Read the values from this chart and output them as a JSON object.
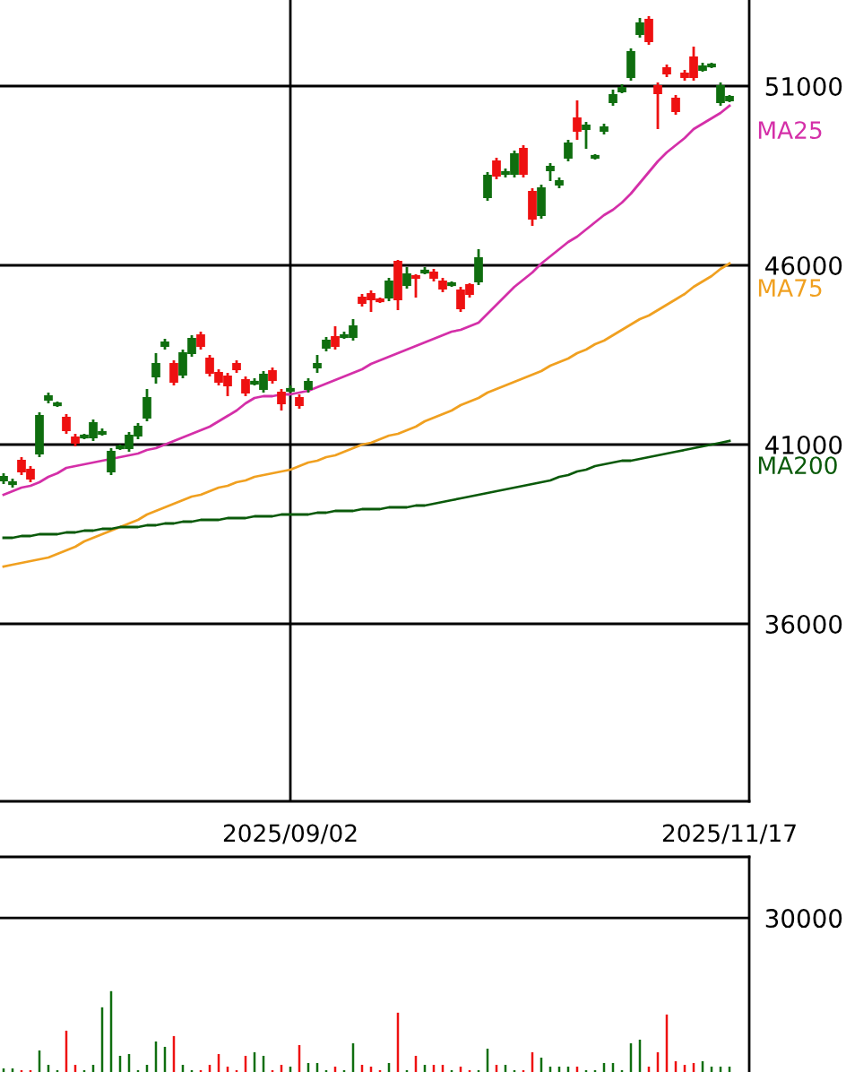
{
  "chart_data": [
    {
      "type": "candlestick",
      "categories": [
        null,
        null,
        null,
        null,
        null,
        null,
        null,
        null,
        null,
        null,
        null,
        null,
        null,
        null,
        null,
        null,
        null,
        null,
        null,
        null,
        null,
        null,
        null,
        null,
        null,
        null,
        null,
        null,
        null,
        null,
        null,
        null,
        "2025/09/02",
        null,
        null,
        null,
        null,
        null,
        null,
        null,
        null,
        null,
        null,
        null,
        null,
        null,
        null,
        null,
        null,
        null,
        null,
        null,
        null,
        null,
        null,
        null,
        null,
        null,
        null,
        null,
        null,
        null,
        null,
        null,
        null,
        null,
        null,
        null,
        null,
        null,
        null,
        null,
        null,
        null,
        null,
        null,
        null,
        null,
        null,
        null,
        null,
        "2025/11/17"
      ],
      "ohlc": [
        [
          40100,
          40200,
          39900,
          40000
        ],
        [
          39950,
          40050,
          39800,
          39900
        ],
        [
          40250,
          40650,
          40150,
          40550
        ],
        [
          40050,
          40400,
          39950,
          40300
        ],
        [
          41800,
          41900,
          40650,
          40750
        ],
        [
          42350,
          42450,
          42150,
          42250
        ],
        [
          42150,
          42200,
          42050,
          42100
        ],
        [
          41400,
          41850,
          41300,
          41750
        ],
        [
          41050,
          41300,
          40950,
          41200
        ],
        [
          41250,
          41300,
          41150,
          41200
        ],
        [
          41600,
          41700,
          41100,
          41200
        ],
        [
          41350,
          41450,
          41250,
          41300
        ],
        [
          40800,
          40900,
          40150,
          40250
        ],
        [
          40950,
          41000,
          40850,
          40900
        ],
        [
          41250,
          41350,
          40800,
          40900
        ],
        [
          41500,
          41600,
          41150,
          41250
        ],
        [
          42300,
          42550,
          41650,
          41750
        ],
        [
          43250,
          43550,
          42700,
          42900
        ],
        [
          43850,
          43950,
          43650,
          43750
        ],
        [
          42750,
          43350,
          42650,
          43250
        ],
        [
          43550,
          43650,
          42850,
          42950
        ],
        [
          43950,
          44050,
          43450,
          43550
        ],
        [
          43750,
          44150,
          43650,
          44050
        ],
        [
          43000,
          43500,
          42900,
          43400
        ],
        [
          42750,
          43100,
          42650,
          43000
        ],
        [
          42650,
          43000,
          42350,
          42900
        ],
        [
          43100,
          43350,
          43000,
          43250
        ],
        [
          42450,
          42900,
          42350,
          42800
        ],
        [
          42750,
          42850,
          42650,
          42700
        ],
        [
          42950,
          43050,
          42450,
          42550
        ],
        [
          42800,
          43150,
          42700,
          43050
        ],
        [
          42150,
          42550,
          41950,
          42450
        ],
        [
          42550,
          42650,
          42450,
          42500
        ],
        [
          42100,
          42400,
          42000,
          42300
        ],
        [
          42750,
          42850,
          42450,
          42550
        ],
        [
          43250,
          43500,
          43000,
          43150
        ],
        [
          43900,
          44000,
          43600,
          43700
        ],
        [
          43750,
          44300,
          43650,
          44000
        ],
        [
          44050,
          44150,
          43950,
          44000
        ],
        [
          44300,
          44500,
          43900,
          44000
        ],
        [
          44950,
          45200,
          44850,
          45100
        ],
        [
          45050,
          45300,
          44700,
          45200
        ],
        [
          45000,
          45100,
          44950,
          45050
        ],
        [
          45550,
          45650,
          45000,
          45100
        ],
        [
          45050,
          46150,
          44750,
          46100
        ],
        [
          45750,
          45950,
          45350,
          45450
        ],
        [
          45650,
          45750,
          45100,
          45700
        ],
        [
          45850,
          45950,
          45750,
          45800
        ],
        [
          45650,
          45900,
          45550,
          45800
        ],
        [
          45350,
          45650,
          45250,
          45550
        ],
        [
          45500,
          45550,
          45400,
          45450
        ],
        [
          44800,
          45400,
          44700,
          45300
        ],
        [
          45200,
          45500,
          45100,
          45450
        ],
        [
          46200,
          46450,
          45450,
          45550
        ],
        [
          48500,
          48600,
          47800,
          47900
        ],
        [
          48500,
          49000,
          48400,
          48900
        ],
        [
          48600,
          48700,
          48450,
          48550
        ],
        [
          49100,
          49200,
          48450,
          48550
        ],
        [
          48550,
          49350,
          48450,
          49250
        ],
        [
          47300,
          48150,
          47100,
          48050
        ],
        [
          48150,
          48250,
          47300,
          47400
        ],
        [
          48750,
          48850,
          48350,
          48650
        ],
        [
          48350,
          48450,
          48150,
          48250
        ],
        [
          49400,
          49500,
          48900,
          49000
        ],
        [
          49750,
          50600,
          49500,
          50100
        ],
        [
          49900,
          50000,
          49250,
          49800
        ],
        [
          49050,
          49100,
          48950,
          49000
        ],
        [
          49850,
          49950,
          49650,
          49750
        ],
        [
          50750,
          50900,
          50450,
          50550
        ],
        [
          50950,
          51050,
          50800,
          50850
        ],
        [
          51950,
          52050,
          51150,
          51250
        ],
        [
          52750,
          52900,
          52350,
          52450
        ],
        [
          52250,
          52950,
          52150,
          52850
        ],
        [
          50800,
          51100,
          49800,
          51000
        ],
        [
          51350,
          51600,
          51250,
          51500
        ],
        [
          50300,
          50750,
          50200,
          50650
        ],
        [
          51250,
          51450,
          51150,
          51350
        ],
        [
          51250,
          52100,
          51150,
          51800
        ],
        [
          51550,
          51650,
          51400,
          51450
        ],
        [
          51600,
          51650,
          51500,
          51550
        ],
        [
          51000,
          51100,
          50450,
          50550
        ],
        [
          50700,
          50750,
          50550,
          50600
        ]
      ],
      "colors": [
        "#0f6e0f",
        "#0f6e0f",
        "#ee1111",
        "#ee1111",
        "#0f6e0f",
        "#0f6e0f",
        "#0f6e0f",
        "#ee1111",
        "#ee1111",
        "#0f6e0f",
        "#0f6e0f",
        "#0f6e0f",
        "#0f6e0f",
        "#0f6e0f",
        "#0f6e0f",
        "#0f6e0f",
        "#0f6e0f",
        "#0f6e0f",
        "#0f6e0f",
        "#ee1111",
        "#0f6e0f",
        "#0f6e0f",
        "#ee1111",
        "#ee1111",
        "#ee1111",
        "#ee1111",
        "#ee1111",
        "#ee1111",
        "#0f6e0f",
        "#0f6e0f",
        "#ee1111",
        "#ee1111",
        "#0f6e0f",
        "#ee1111",
        "#0f6e0f",
        "#0f6e0f",
        "#0f6e0f",
        "#ee1111",
        "#0f6e0f",
        "#0f6e0f",
        "#ee1111",
        "#ee1111",
        "#ee1111",
        "#0f6e0f",
        "#ee1111",
        "#0f6e0f",
        "#ee1111",
        "#0f6e0f",
        "#ee1111",
        "#ee1111",
        "#0f6e0f",
        "#ee1111",
        "#ee1111",
        "#0f6e0f",
        "#0f6e0f",
        "#ee1111",
        "#0f6e0f",
        "#0f6e0f",
        "#ee1111",
        "#ee1111",
        "#0f6e0f",
        "#0f6e0f",
        "#0f6e0f",
        "#0f6e0f",
        "#ee1111",
        "#0f6e0f",
        "#0f6e0f",
        "#0f6e0f",
        "#0f6e0f",
        "#0f6e0f",
        "#0f6e0f",
        "#0f6e0f",
        "#ee1111",
        "#ee1111",
        "#ee1111",
        "#ee1111",
        "#ee1111",
        "#ee1111",
        "#0f6e0f",
        "#0f6e0f",
        "#0f6e0f",
        "#0f6e0f"
      ],
      "series": [
        {
          "type": "line",
          "name": "MA25",
          "color": "#d42fa8",
          "values": [
            39600,
            39700,
            39800,
            39850,
            39950,
            40100,
            40200,
            40350,
            40400,
            40450,
            40500,
            40550,
            40600,
            40650,
            40700,
            40750,
            40850,
            40900,
            41000,
            41100,
            41200,
            41300,
            41400,
            41500,
            41650,
            41800,
            41950,
            42150,
            42300,
            42350,
            42350,
            42400,
            42400,
            42450,
            42500,
            42600,
            42700,
            42800,
            42900,
            43000,
            43100,
            43250,
            43350,
            43450,
            43550,
            43650,
            43750,
            43850,
            43950,
            44050,
            44150,
            44200,
            44300,
            44400,
            44650,
            44900,
            45150,
            45400,
            45600,
            45800,
            46050,
            46250,
            46450,
            46650,
            46800,
            47000,
            47200,
            47400,
            47550,
            47750,
            48000,
            48300,
            48600,
            48900,
            49150,
            49350,
            49550,
            49800,
            49950,
            50100,
            50250,
            50450
          ]
        },
        {
          "type": "line",
          "name": "MA75",
          "color": "#f0a020",
          "values": [
            37600,
            37650,
            37700,
            37750,
            37800,
            37850,
            37950,
            38050,
            38150,
            38300,
            38400,
            38500,
            38600,
            38700,
            38800,
            38900,
            39050,
            39150,
            39250,
            39350,
            39450,
            39550,
            39600,
            39700,
            39800,
            39850,
            39950,
            40000,
            40100,
            40150,
            40200,
            40250,
            40300,
            40400,
            40500,
            40550,
            40650,
            40700,
            40800,
            40900,
            41000,
            41050,
            41150,
            41250,
            41300,
            41400,
            41500,
            41650,
            41750,
            41850,
            41950,
            42100,
            42200,
            42300,
            42450,
            42550,
            42650,
            42750,
            42850,
            42950,
            43050,
            43200,
            43300,
            43400,
            43550,
            43650,
            43800,
            43900,
            44050,
            44200,
            44350,
            44500,
            44600,
            44750,
            44900,
            45050,
            45200,
            45400,
            45550,
            45700,
            45900,
            46050
          ]
        },
        {
          "type": "line",
          "name": "MA200",
          "color": "#0a5a0a",
          "values": [
            38400,
            38400,
            38450,
            38450,
            38500,
            38500,
            38500,
            38550,
            38550,
            38600,
            38600,
            38650,
            38650,
            38700,
            38700,
            38700,
            38750,
            38750,
            38800,
            38800,
            38850,
            38850,
            38900,
            38900,
            38900,
            38950,
            38950,
            38950,
            39000,
            39000,
            39000,
            39050,
            39050,
            39050,
            39050,
            39100,
            39100,
            39150,
            39150,
            39150,
            39200,
            39200,
            39200,
            39250,
            39250,
            39250,
            39300,
            39300,
            39350,
            39400,
            39450,
            39500,
            39550,
            39600,
            39650,
            39700,
            39750,
            39800,
            39850,
            39900,
            39950,
            40000,
            40100,
            40150,
            40250,
            40300,
            40400,
            40450,
            40500,
            40550,
            40550,
            40600,
            40650,
            40700,
            40750,
            40800,
            40850,
            40900,
            40950,
            41000,
            41050,
            41100
          ]
        }
      ],
      "ylim": [
        31050,
        53400
      ],
      "yticks": [
        36000,
        41000,
        46000,
        51000
      ],
      "grid": true
    },
    {
      "type": "bar",
      "categories": [
        null,
        null,
        null,
        null,
        null,
        null,
        null,
        null,
        null,
        null,
        null,
        null,
        null,
        null,
        null,
        null,
        null,
        null,
        null,
        null,
        null,
        null,
        null,
        null,
        null,
        null,
        null,
        null,
        null,
        null,
        null,
        null,
        "2025/09/02",
        null,
        null,
        null,
        null,
        null,
        null,
        null,
        null,
        null,
        null,
        null,
        null,
        null,
        null,
        null,
        null,
        null,
        null,
        null,
        null,
        null,
        null,
        null,
        null,
        null,
        null,
        null,
        null,
        null,
        null,
        null,
        null,
        null,
        null,
        null,
        null,
        null,
        null,
        null,
        null,
        null,
        null,
        null,
        null,
        null,
        null,
        null,
        null,
        "2025/11/17"
      ],
      "values": [
        700,
        700,
        350,
        350,
        4200,
        1400,
        350,
        8050,
        1400,
        350,
        1400,
        12600,
        15750,
        3150,
        3500,
        350,
        1400,
        5950,
        4900,
        7000,
        1400,
        350,
        350,
        1400,
        3500,
        1050,
        350,
        3150,
        3850,
        3150,
        350,
        1400,
        1050,
        5250,
        1750,
        1750,
        350,
        1050,
        350,
        5600,
        1400,
        1050,
        350,
        1750,
        11550,
        350,
        3150,
        1400,
        1400,
        1400,
        350,
        1050,
        350,
        350,
        4550,
        1400,
        1400,
        350,
        350,
        3850,
        2800,
        1050,
        1050,
        1050,
        1050,
        350,
        350,
        1750,
        1750,
        350,
        5600,
        6300,
        1050,
        3850,
        11200,
        2100,
        1400,
        1750,
        2100,
        1050,
        1050,
        1050
      ],
      "colors": [
        "#0f6e0f",
        "#0f6e0f",
        "#ee1111",
        "#ee1111",
        "#0f6e0f",
        "#0f6e0f",
        "#0f6e0f",
        "#ee1111",
        "#ee1111",
        "#0f6e0f",
        "#0f6e0f",
        "#0f6e0f",
        "#0f6e0f",
        "#0f6e0f",
        "#0f6e0f",
        "#0f6e0f",
        "#0f6e0f",
        "#0f6e0f",
        "#0f6e0f",
        "#ee1111",
        "#0f6e0f",
        "#0f6e0f",
        "#ee1111",
        "#ee1111",
        "#ee1111",
        "#ee1111",
        "#ee1111",
        "#ee1111",
        "#0f6e0f",
        "#0f6e0f",
        "#ee1111",
        "#ee1111",
        "#0f6e0f",
        "#ee1111",
        "#0f6e0f",
        "#0f6e0f",
        "#0f6e0f",
        "#ee1111",
        "#0f6e0f",
        "#0f6e0f",
        "#ee1111",
        "#ee1111",
        "#ee1111",
        "#0f6e0f",
        "#ee1111",
        "#0f6e0f",
        "#ee1111",
        "#0f6e0f",
        "#ee1111",
        "#ee1111",
        "#0f6e0f",
        "#ee1111",
        "#ee1111",
        "#0f6e0f",
        "#0f6e0f",
        "#ee1111",
        "#0f6e0f",
        "#0f6e0f",
        "#ee1111",
        "#ee1111",
        "#0f6e0f",
        "#0f6e0f",
        "#0f6e0f",
        "#0f6e0f",
        "#ee1111",
        "#0f6e0f",
        "#0f6e0f",
        "#0f6e0f",
        "#0f6e0f",
        "#0f6e0f",
        "#0f6e0f",
        "#0f6e0f",
        "#ee1111",
        "#ee1111",
        "#ee1111",
        "#ee1111",
        "#ee1111",
        "#ee1111",
        "#0f6e0f",
        "#0f6e0f",
        "#0f6e0f",
        "#0f6e0f"
      ],
      "ylim": [
        0,
        41900
      ],
      "yticks": [
        30000
      ],
      "grid": "y",
      "tick_labels": "y"
    }
  ]
}
